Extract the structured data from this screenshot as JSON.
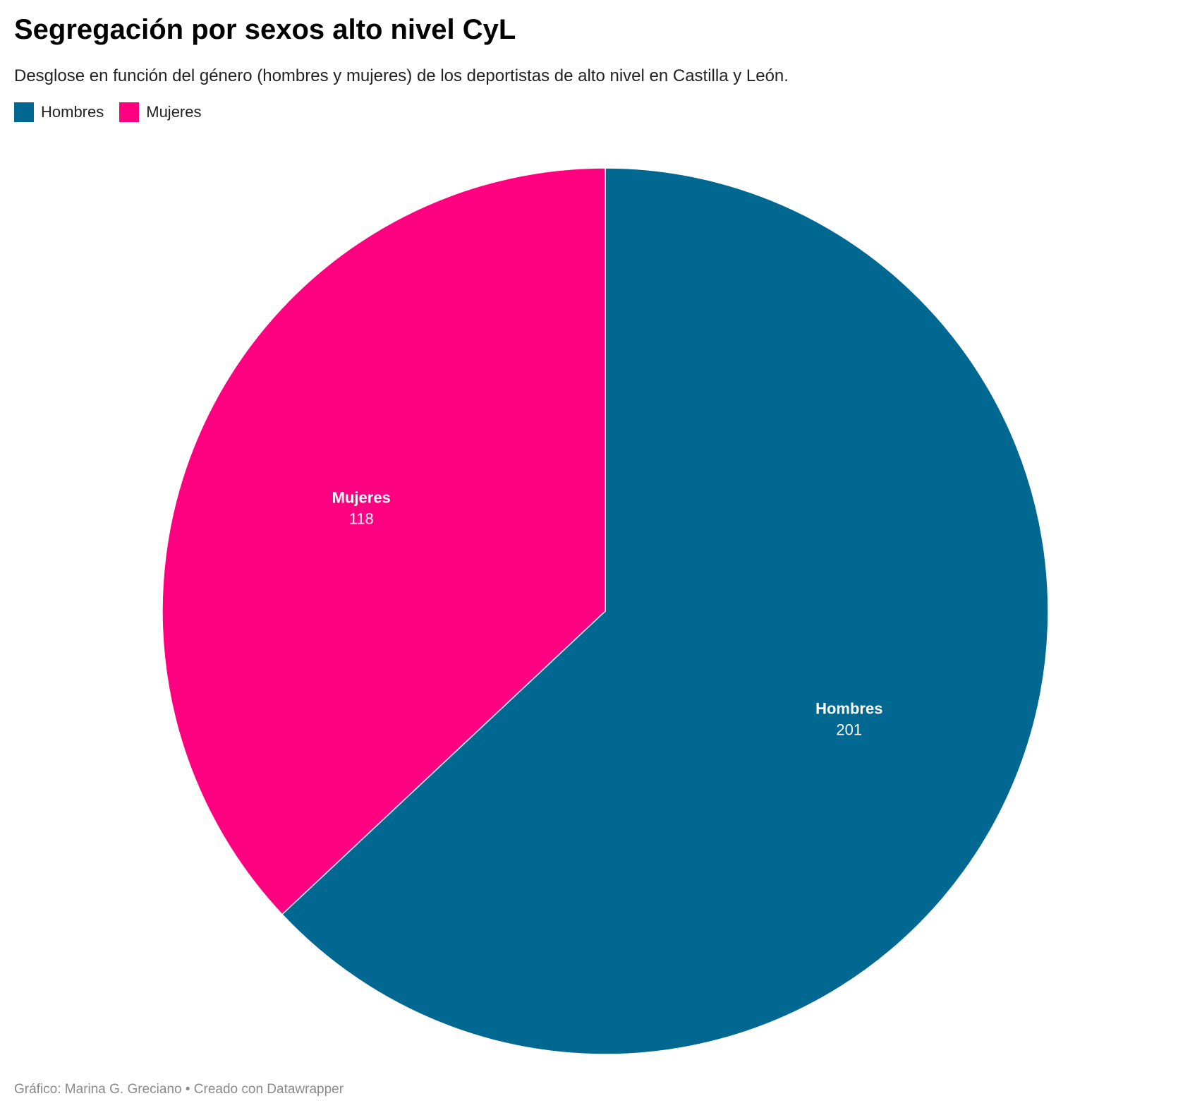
{
  "chart_data": {
    "type": "pie",
    "title": "Segregación por sexos alto nivel CyL",
    "subtitle": "Desglose en función del género (hombres y mujeres) de los deportistas de alto nivel en Castilla y León.",
    "categories": [
      "Hombres",
      "Mujeres"
    ],
    "values": [
      201,
      118
    ],
    "colors": [
      "#006891",
      "#ff0080"
    ],
    "legend": [
      "Hombres",
      "Mujeres"
    ],
    "legend_position": "top-left",
    "value_labels": [
      "201",
      "118"
    ]
  },
  "footer": {
    "credit": "Gráfico: Marina G. Greciano • Creado con Datawrapper"
  }
}
